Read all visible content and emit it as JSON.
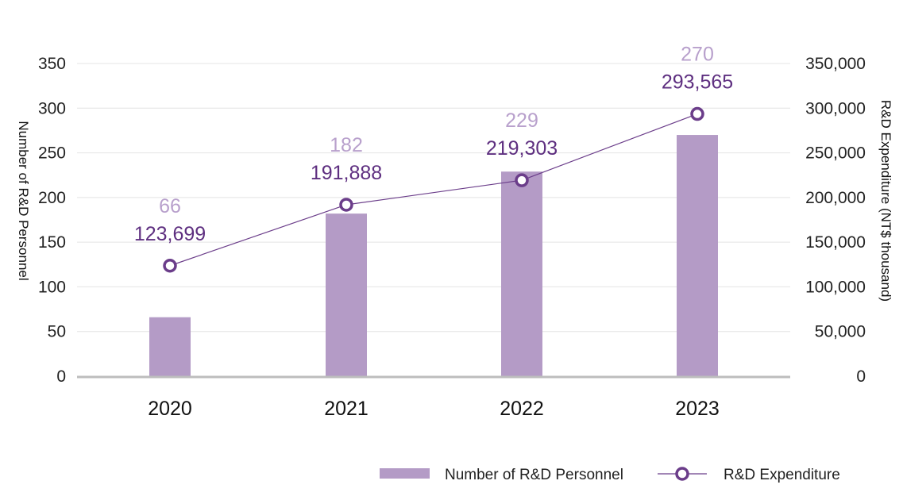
{
  "chart_data": {
    "type": "bar",
    "categories": [
      "2020",
      "2021",
      "2022",
      "2023"
    ],
    "series": [
      {
        "name": "Number of R&D Personnel",
        "type": "bar",
        "axis": "left",
        "values": [
          66,
          182,
          229,
          270
        ],
        "labels": [
          "66",
          "182",
          "229",
          "270"
        ]
      },
      {
        "name": "R&D Expenditure",
        "type": "line",
        "axis": "right",
        "values": [
          123699,
          191888,
          219303,
          293565
        ],
        "labels": [
          "123,699",
          "191,888",
          "219,303",
          "293,565"
        ]
      }
    ],
    "ylabel": "Number of R&D Personnel",
    "y2label": "R&D Expenditure (NT$ thousand)",
    "ylim": [
      0,
      350
    ],
    "y2lim": [
      0,
      350000
    ],
    "yticks": [
      "0",
      "50",
      "100",
      "150",
      "200",
      "250",
      "300",
      "350"
    ],
    "y2ticks": [
      "0",
      "50,000",
      "100,000",
      "150,000",
      "200,000",
      "250,000",
      "300,000",
      "350,000"
    ],
    "grid": true,
    "legend_position": "bottom-right",
    "colors": {
      "bar": "#b49bc6",
      "bar_label": "#b8a0cc",
      "line": "#6b3d8a",
      "line_label": "#5e2f80",
      "grid": "#e4e4e4",
      "baseline": "#bdbdbd"
    }
  }
}
